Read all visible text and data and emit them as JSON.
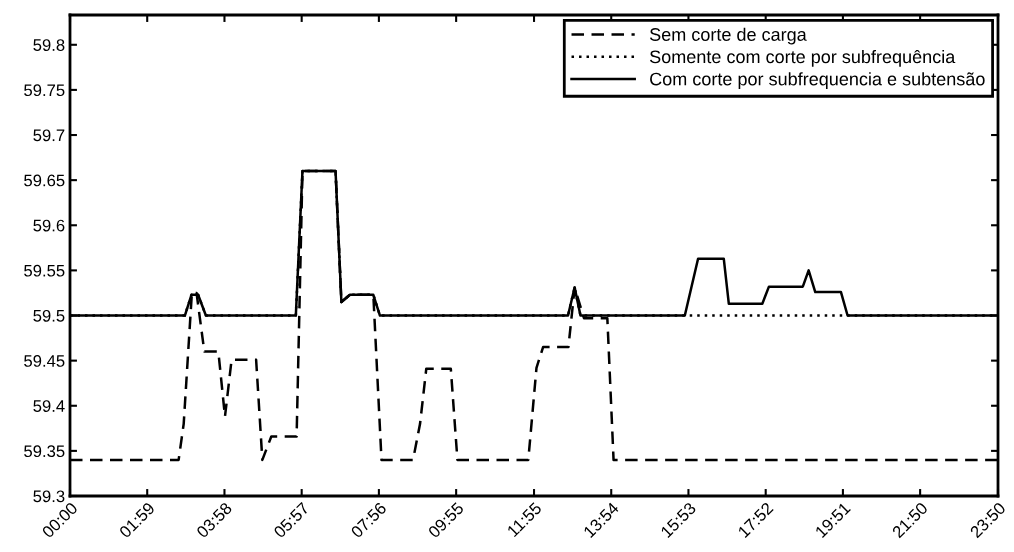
{
  "chart_data": {
    "type": "line",
    "xlim": [
      0,
      23.833
    ],
    "ylim": [
      59.3,
      59.833
    ],
    "xticks": [
      {
        "value": 0,
        "label": "00:00"
      },
      {
        "value": 1.983,
        "label": "01:59"
      },
      {
        "value": 3.967,
        "label": "03:58"
      },
      {
        "value": 5.95,
        "label": "05:57"
      },
      {
        "value": 7.933,
        "label": "07:56"
      },
      {
        "value": 9.917,
        "label": "09:55"
      },
      {
        "value": 11.917,
        "label": "11:55"
      },
      {
        "value": 13.9,
        "label": "13:54"
      },
      {
        "value": 15.883,
        "label": "15:53"
      },
      {
        "value": 17.867,
        "label": "17:52"
      },
      {
        "value": 19.85,
        "label": "19:51"
      },
      {
        "value": 21.833,
        "label": "21:50"
      },
      {
        "value": 23.833,
        "label": "23:50"
      }
    ],
    "yticks": [
      59.3,
      59.35,
      59.4,
      59.45,
      59.5,
      59.55,
      59.6,
      59.65,
      59.7,
      59.75,
      59.8
    ],
    "grid": false,
    "legend": "top right",
    "marker": "none",
    "series": [
      {
        "name": "Sem corte de carga",
        "color": "#000000",
        "line_style": "dashed",
        "x": [
          0,
          2.79,
          2.92,
          3.13,
          3.25,
          3.45,
          3.81,
          3.98,
          4.15,
          4.78,
          4.94,
          5.17,
          5.82,
          5.97,
          6.82,
          6.97,
          7.19,
          7.79,
          8.0,
          8.81,
          8.99,
          9.15,
          9.78,
          9.95,
          11.77,
          11.98,
          12.15,
          12.8,
          12.91,
          12.96,
          13.2,
          13.8,
          13.96,
          23.833
        ],
        "values": [
          59.34,
          59.34,
          59.38,
          59.525,
          59.525,
          59.46,
          59.46,
          59.388,
          59.451,
          59.451,
          59.34,
          59.366,
          59.366,
          59.66,
          59.66,
          59.515,
          59.523,
          59.523,
          59.34,
          59.34,
          59.38,
          59.441,
          59.441,
          59.34,
          59.34,
          59.442,
          59.465,
          59.465,
          59.51,
          59.531,
          59.497,
          59.497,
          59.34,
          59.34
        ]
      },
      {
        "name": "Somente com corte por subfrequência",
        "color": "#000000",
        "line_style": "dotted",
        "x": [
          0,
          2.95,
          3.12,
          3.29,
          3.49,
          5.8,
          5.97,
          6.82,
          6.97,
          7.19,
          7.79,
          7.96,
          12.79,
          12.96,
          13.11,
          23.833
        ],
        "values": [
          59.5,
          59.5,
          59.523,
          59.523,
          59.5,
          59.5,
          59.66,
          59.66,
          59.515,
          59.523,
          59.523,
          59.5,
          59.5,
          59.531,
          59.5,
          59.5
        ]
      },
      {
        "name": "Com corte por subfrequencia e subtensão",
        "color": "#000000",
        "line_style": "solid",
        "x": [
          0,
          2.95,
          3.12,
          3.29,
          3.49,
          5.8,
          5.97,
          6.82,
          6.97,
          7.19,
          7.79,
          7.96,
          12.79,
          12.96,
          13.11,
          15.79,
          16.13,
          16.79,
          16.92,
          17.78,
          17.95,
          18.82,
          18.97,
          19.14,
          19.8,
          19.97,
          23.833
        ],
        "values": [
          59.5,
          59.5,
          59.523,
          59.523,
          59.5,
          59.5,
          59.66,
          59.66,
          59.515,
          59.523,
          59.523,
          59.5,
          59.5,
          59.531,
          59.5,
          59.5,
          59.563,
          59.563,
          59.513,
          59.513,
          59.532,
          59.532,
          59.55,
          59.526,
          59.526,
          59.5,
          59.5
        ]
      }
    ]
  }
}
